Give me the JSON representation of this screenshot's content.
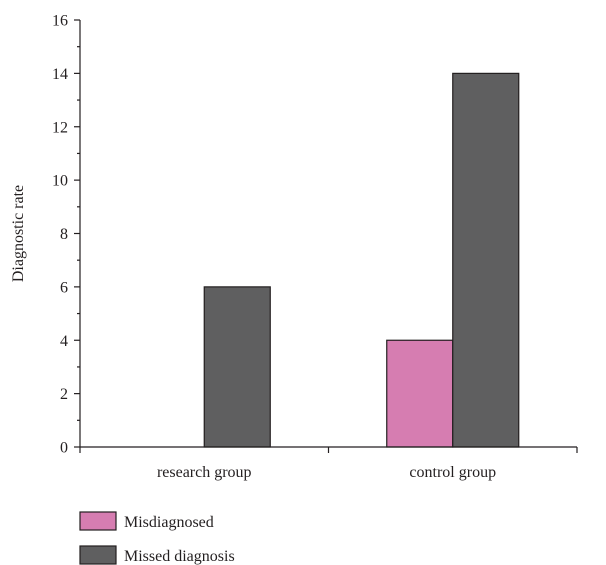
{
  "chart_data": {
    "type": "bar",
    "title": "",
    "xlabel": "",
    "ylabel": "Diagnostic rate",
    "ylim": [
      0,
      16
    ],
    "yticks": [
      0,
      2,
      4,
      6,
      8,
      10,
      12,
      14,
      16
    ],
    "categories": [
      "research group",
      "control group"
    ],
    "series": [
      {
        "name": "Misdiagnosed",
        "values": [
          0,
          4
        ],
        "color": "#d67db1"
      },
      {
        "name": "Missed diagnosis",
        "values": [
          6,
          14
        ],
        "color": "#5f5f60"
      }
    ],
    "legend_position": "bottom-left",
    "grid": false
  }
}
